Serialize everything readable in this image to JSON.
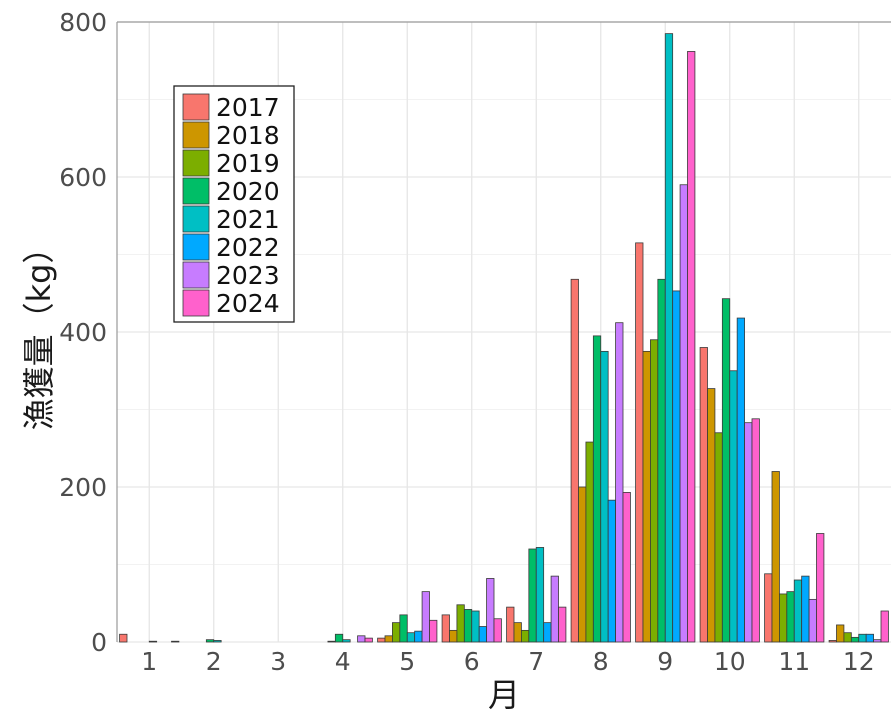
{
  "chart_data": {
    "type": "bar",
    "xlabel": "月",
    "ylabel": "漁獲量（kg）",
    "ylim": [
      0,
      800
    ],
    "yticks": [
      0,
      200,
      400,
      600,
      800
    ],
    "grid": true,
    "legend_position": "top-left",
    "categories": [
      "1",
      "2",
      "3",
      "4",
      "5",
      "6",
      "7",
      "8",
      "9",
      "10",
      "11",
      "12"
    ],
    "series": [
      {
        "name": "2017",
        "color": "#F8766D",
        "values": [
          10,
          0,
          0,
          0,
          5,
          35,
          45,
          468,
          515,
          380,
          88,
          2
        ]
      },
      {
        "name": "2018",
        "color": "#CD9600",
        "values": [
          0,
          0,
          0,
          0,
          8,
          15,
          25,
          200,
          375,
          327,
          220,
          22
        ]
      },
      {
        "name": "2019",
        "color": "#7CAE00",
        "values": [
          0,
          0,
          0,
          1,
          25,
          48,
          15,
          258,
          390,
          270,
          62,
          12
        ]
      },
      {
        "name": "2020",
        "color": "#00BE67",
        "values": [
          0,
          3,
          0,
          10,
          35,
          42,
          120,
          395,
          468,
          443,
          65,
          6
        ]
      },
      {
        "name": "2021",
        "color": "#00BFC4",
        "values": [
          1,
          2,
          0,
          3,
          12,
          40,
          122,
          375,
          785,
          350,
          80,
          10
        ]
      },
      {
        "name": "2022",
        "color": "#00A9FF",
        "values": [
          0,
          0,
          0,
          0,
          14,
          20,
          25,
          183,
          453,
          418,
          85,
          10
        ]
      },
      {
        "name": "2023",
        "color": "#C77CFF",
        "values": [
          0,
          0,
          0,
          8,
          65,
          82,
          85,
          412,
          590,
          283,
          55,
          3
        ]
      },
      {
        "name": "2024",
        "color": "#FF61CC",
        "values": [
          1,
          0,
          0,
          5,
          28,
          30,
          45,
          193,
          762,
          288,
          140,
          40
        ]
      }
    ]
  }
}
